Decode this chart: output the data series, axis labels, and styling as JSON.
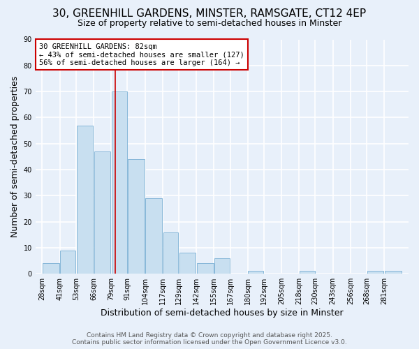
{
  "title": "30, GREENHILL GARDENS, MINSTER, RAMSGATE, CT12 4EP",
  "subtitle": "Size of property relative to semi-detached houses in Minster",
  "xlabel": "Distribution of semi-detached houses by size in Minster",
  "ylabel": "Number of semi-detached properties",
  "bar_color": "#c8dff0",
  "bar_edge_color": "#7ab0d4",
  "background_color": "#e8f0fa",
  "plot_bg_color": "#e8f0fa",
  "grid_color": "#ffffff",
  "bin_labels": [
    "28sqm",
    "41sqm",
    "53sqm",
    "66sqm",
    "79sqm",
    "91sqm",
    "104sqm",
    "117sqm",
    "129sqm",
    "142sqm",
    "155sqm",
    "167sqm",
    "180sqm",
    "192sqm",
    "205sqm",
    "218sqm",
    "230sqm",
    "243sqm",
    "256sqm",
    "268sqm",
    "281sqm"
  ],
  "bin_edges": [
    28,
    41,
    53,
    66,
    79,
    91,
    104,
    117,
    129,
    142,
    155,
    167,
    180,
    192,
    205,
    218,
    230,
    243,
    256,
    268,
    281,
    294
  ],
  "bar_heights": [
    4,
    9,
    57,
    47,
    70,
    44,
    29,
    16,
    8,
    4,
    6,
    0,
    1,
    0,
    0,
    1,
    0,
    0,
    0,
    1,
    1
  ],
  "ylim": [
    0,
    90
  ],
  "yticks": [
    0,
    10,
    20,
    30,
    40,
    50,
    60,
    70,
    80,
    90
  ],
  "vline_x": 82,
  "vline_color": "#cc0000",
  "annotation_text": "30 GREENHILL GARDENS: 82sqm\n← 43% of semi-detached houses are smaller (127)\n56% of semi-detached houses are larger (164) →",
  "annotation_box_color": "#ffffff",
  "annotation_box_edge": "#cc0000",
  "footer_line1": "Contains HM Land Registry data © Crown copyright and database right 2025.",
  "footer_line2": "Contains public sector information licensed under the Open Government Licence v3.0.",
  "title_fontsize": 11,
  "subtitle_fontsize": 9,
  "axis_label_fontsize": 9,
  "tick_fontsize": 7,
  "annotation_fontsize": 7.5,
  "footer_fontsize": 6.5
}
